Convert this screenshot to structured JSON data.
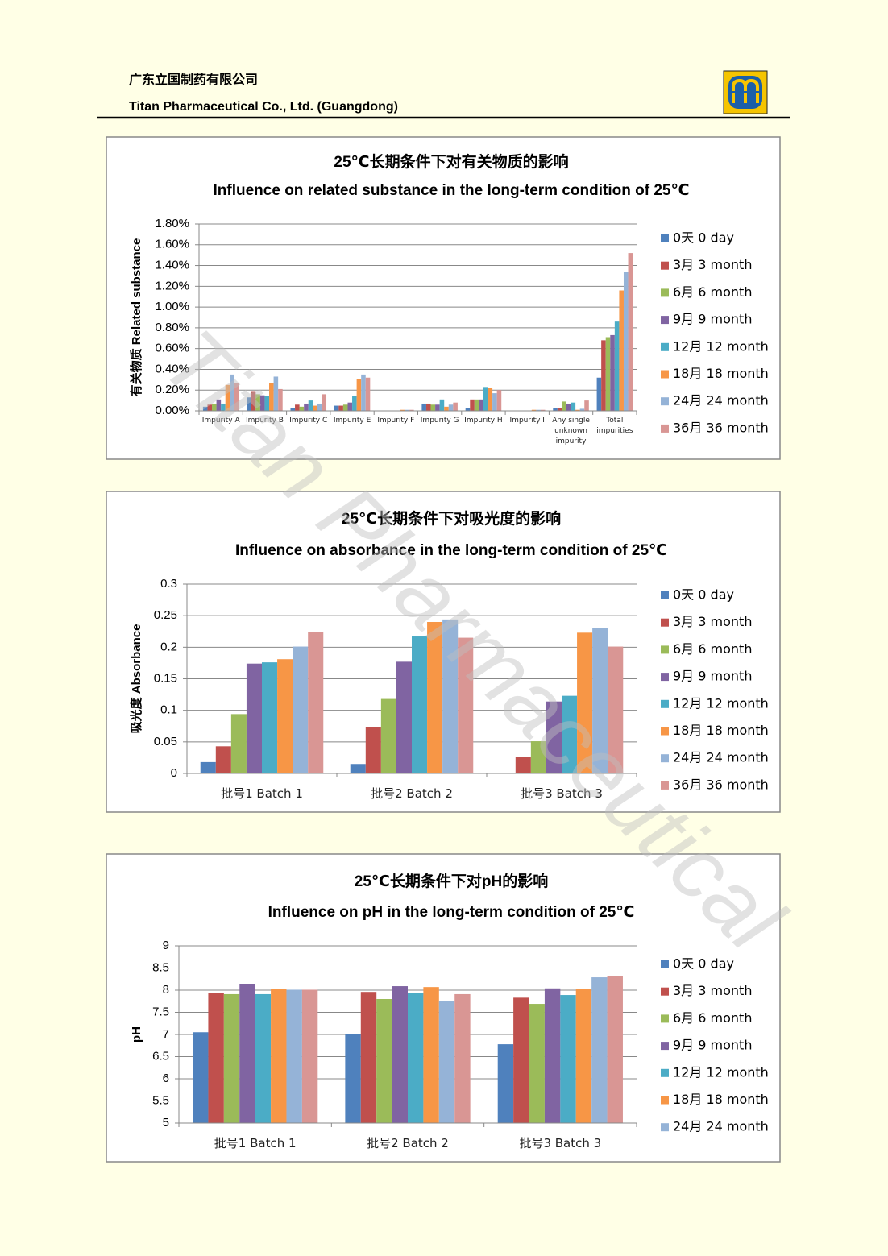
{
  "header": {
    "company_cn": "广东立国制药有限公司",
    "company_en": "Titan Pharmaceutical Co., Ltd. (Guangdong)"
  },
  "watermark": "Titan Pharmaceutical",
  "chart_data": [
    {
      "type": "bar",
      "title": "25℃长期条件下对有关物质的影响",
      "subtitle": "Influence on related substance in the long-term condition of 25℃",
      "y_label": "有关物质 Related substance",
      "categories": [
        "Impurity A",
        "Impurity B",
        "Impurity C",
        "Impurity E",
        "Impurity F",
        "Impurity G",
        "Impurity H",
        "Impurity I",
        "Any single unknown impurity",
        "Total impurities"
      ],
      "ylim": [
        0,
        1.8
      ],
      "yticks": [
        {
          "value": 0,
          "label": "0.00%"
        },
        {
          "value": 0.2,
          "label": "0.20%"
        },
        {
          "value": 0.4,
          "label": "0.40%"
        },
        {
          "value": 0.6,
          "label": "0.60%"
        },
        {
          "value": 0.8,
          "label": "0.80%"
        },
        {
          "value": 1.0,
          "label": "1.00%"
        },
        {
          "value": 1.2,
          "label": "1.20%"
        },
        {
          "value": 1.4,
          "label": "1.40%"
        },
        {
          "value": 1.6,
          "label": "1.60%"
        },
        {
          "value": 1.8,
          "label": "1.80%"
        }
      ],
      "grid": true,
      "legend": "right",
      "series": [
        {
          "name": "0天 0 day",
          "color": "#4f81bd",
          "values": [
            0.04,
            0.13,
            0.03,
            0.05,
            0,
            0.07,
            0.03,
            0,
            0.03,
            0.32
          ]
        },
        {
          "name": "3月 3 month",
          "color": "#c0504d",
          "values": [
            0.06,
            0.19,
            0.06,
            0.05,
            0,
            0.07,
            0.11,
            0,
            0.03,
            0.68
          ]
        },
        {
          "name": "6月 6 month",
          "color": "#9bbb59",
          "values": [
            0.07,
            0.16,
            0.04,
            0.06,
            0,
            0.06,
            0.11,
            0,
            0.09,
            0.71
          ]
        },
        {
          "name": "9月 9 month",
          "color": "#8064a2",
          "values": [
            0.11,
            0.15,
            0.07,
            0.08,
            0,
            0.06,
            0.11,
            0,
            0.07,
            0.73
          ]
        },
        {
          "name": "12月 12 month",
          "color": "#4bacc6",
          "values": [
            0.07,
            0.14,
            0.1,
            0.14,
            0,
            0.11,
            0.23,
            0,
            0.08,
            0.86
          ]
        },
        {
          "name": "18月 18 month",
          "color": "#f79646",
          "values": [
            0.25,
            0.27,
            0.05,
            0.31,
            0.01,
            0.04,
            0.22,
            0.01,
            0.01,
            1.16
          ]
        },
        {
          "name": "24月 24 month",
          "color": "#95b3d7",
          "values": [
            0.35,
            0.33,
            0.07,
            0.35,
            0.01,
            0.06,
            0.17,
            0.01,
            0.02,
            1.34
          ]
        },
        {
          "name": "36月 36 month",
          "color": "#d99694",
          "values": [
            0.27,
            0.21,
            0.16,
            0.32,
            0.01,
            0.08,
            0.2,
            0.01,
            0.1,
            1.52
          ]
        }
      ]
    },
    {
      "type": "bar",
      "title": "25℃长期条件下对吸光度的影响",
      "subtitle": "Influence on absorbance in the long-term condition of 25℃",
      "y_label": "吸光度 Absorbance",
      "categories": [
        "批号1 Batch 1",
        "批号2 Batch 2",
        "批号3 Batch 3"
      ],
      "ylim": [
        0,
        0.3
      ],
      "yticks": [
        0,
        0.05,
        0.1,
        0.15,
        0.2,
        0.25,
        0.3
      ],
      "grid": true,
      "legend": "right",
      "series": [
        {
          "name": "0天 0 day",
          "color": "#4f81bd",
          "values": [
            0.018,
            0.015,
            null
          ]
        },
        {
          "name": "3月 3 month",
          "color": "#c0504d",
          "values": [
            0.043,
            0.074,
            0.026
          ]
        },
        {
          "name": "6月 6 month",
          "color": "#9bbb59",
          "values": [
            0.094,
            0.118,
            0.051
          ]
        },
        {
          "name": "9月 9 month",
          "color": "#8064a2",
          "values": [
            0.174,
            0.177,
            0.114
          ]
        },
        {
          "name": "12月 12 month",
          "color": "#4bacc6",
          "values": [
            0.176,
            0.217,
            0.123
          ]
        },
        {
          "name": "18月 18 month",
          "color": "#f79646",
          "values": [
            0.181,
            0.24,
            0.223
          ]
        },
        {
          "name": "24月 24 month",
          "color": "#95b3d7",
          "values": [
            0.201,
            0.244,
            0.231
          ]
        },
        {
          "name": "36月 36 month",
          "color": "#d99694",
          "values": [
            0.224,
            0.215,
            0.201
          ]
        }
      ]
    },
    {
      "type": "bar",
      "title": "25℃长期条件下对pH的影响",
      "subtitle": "Influence on pH in the long-term condition of 25℃",
      "y_label": "pH",
      "categories": [
        "批号1 Batch 1",
        "批号2 Batch 2",
        "批号3 Batch 3"
      ],
      "ylim": [
        5,
        9
      ],
      "yticks": [
        5,
        5.5,
        6,
        6.5,
        7,
        7.5,
        8,
        8.5,
        9
      ],
      "grid": true,
      "legend": "right",
      "series": [
        {
          "name": "0天 0 day",
          "color": "#4f81bd",
          "values": [
            7.05,
            7.0,
            6.78
          ]
        },
        {
          "name": "3月 3 month",
          "color": "#c0504d",
          "values": [
            7.94,
            7.96,
            7.83
          ]
        },
        {
          "name": "6月 6 month",
          "color": "#9bbb59",
          "values": [
            7.91,
            7.8,
            7.69
          ]
        },
        {
          "name": "9月 9 month",
          "color": "#8064a2",
          "values": [
            8.14,
            8.09,
            8.04
          ]
        },
        {
          "name": "12月 12 month",
          "color": "#4bacc6",
          "values": [
            7.91,
            7.93,
            7.89
          ]
        },
        {
          "name": "18月 18 month",
          "color": "#f79646",
          "values": [
            8.03,
            8.07,
            8.03
          ]
        },
        {
          "name": "24月 24 month",
          "color": "#95b3d7",
          "values": [
            8.01,
            7.76,
            8.29
          ]
        },
        {
          "color": "#d99694",
          "values": [
            8.01,
            7.91,
            8.31
          ]
        }
      ]
    }
  ]
}
